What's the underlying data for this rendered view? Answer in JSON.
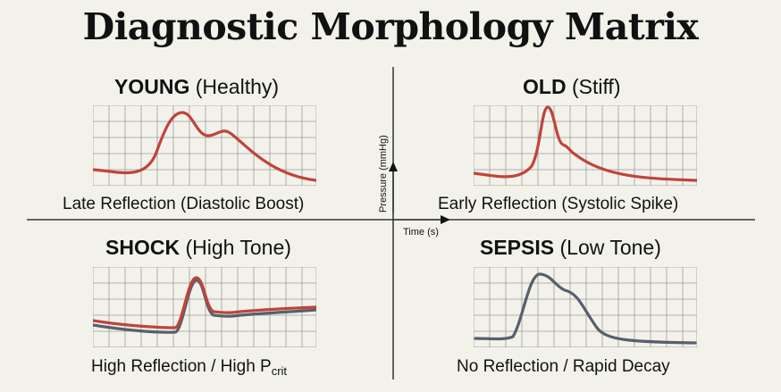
{
  "title": "Diagnostic Morphology Matrix",
  "axes": {
    "y_label": "Pressure (mmHg)",
    "x_label": "Time (s)"
  },
  "colors": {
    "healthy_wave": "#c0433b",
    "low_tone_wave": "#56606c",
    "grid": "#9a9a9a",
    "background": "#f3f2ea"
  },
  "quadrants": [
    {
      "id": "young",
      "title_bold": "YOUNG",
      "title_rest": " (Healthy)",
      "caption": "Late Reflection (Diastolic Boost)",
      "curves": [
        "#c0433b"
      ]
    },
    {
      "id": "old",
      "title_bold": "OLD",
      "title_rest": " (Stiff)",
      "caption": "Early Reflection (Systolic Spike)",
      "curves": [
        "#c0433b"
      ]
    },
    {
      "id": "shock",
      "title_bold": "SHOCK",
      "title_rest": " (High Tone)",
      "caption_main": "High Reflection / High P",
      "caption_sub": "crit",
      "curves": [
        "#56606c",
        "#c0433b"
      ]
    },
    {
      "id": "sepsis",
      "title_bold": "SEPSIS",
      "title_rest": " (Low Tone)",
      "caption": "No Reflection / Rapid Decay",
      "curves": [
        "#56606c"
      ]
    }
  ]
}
